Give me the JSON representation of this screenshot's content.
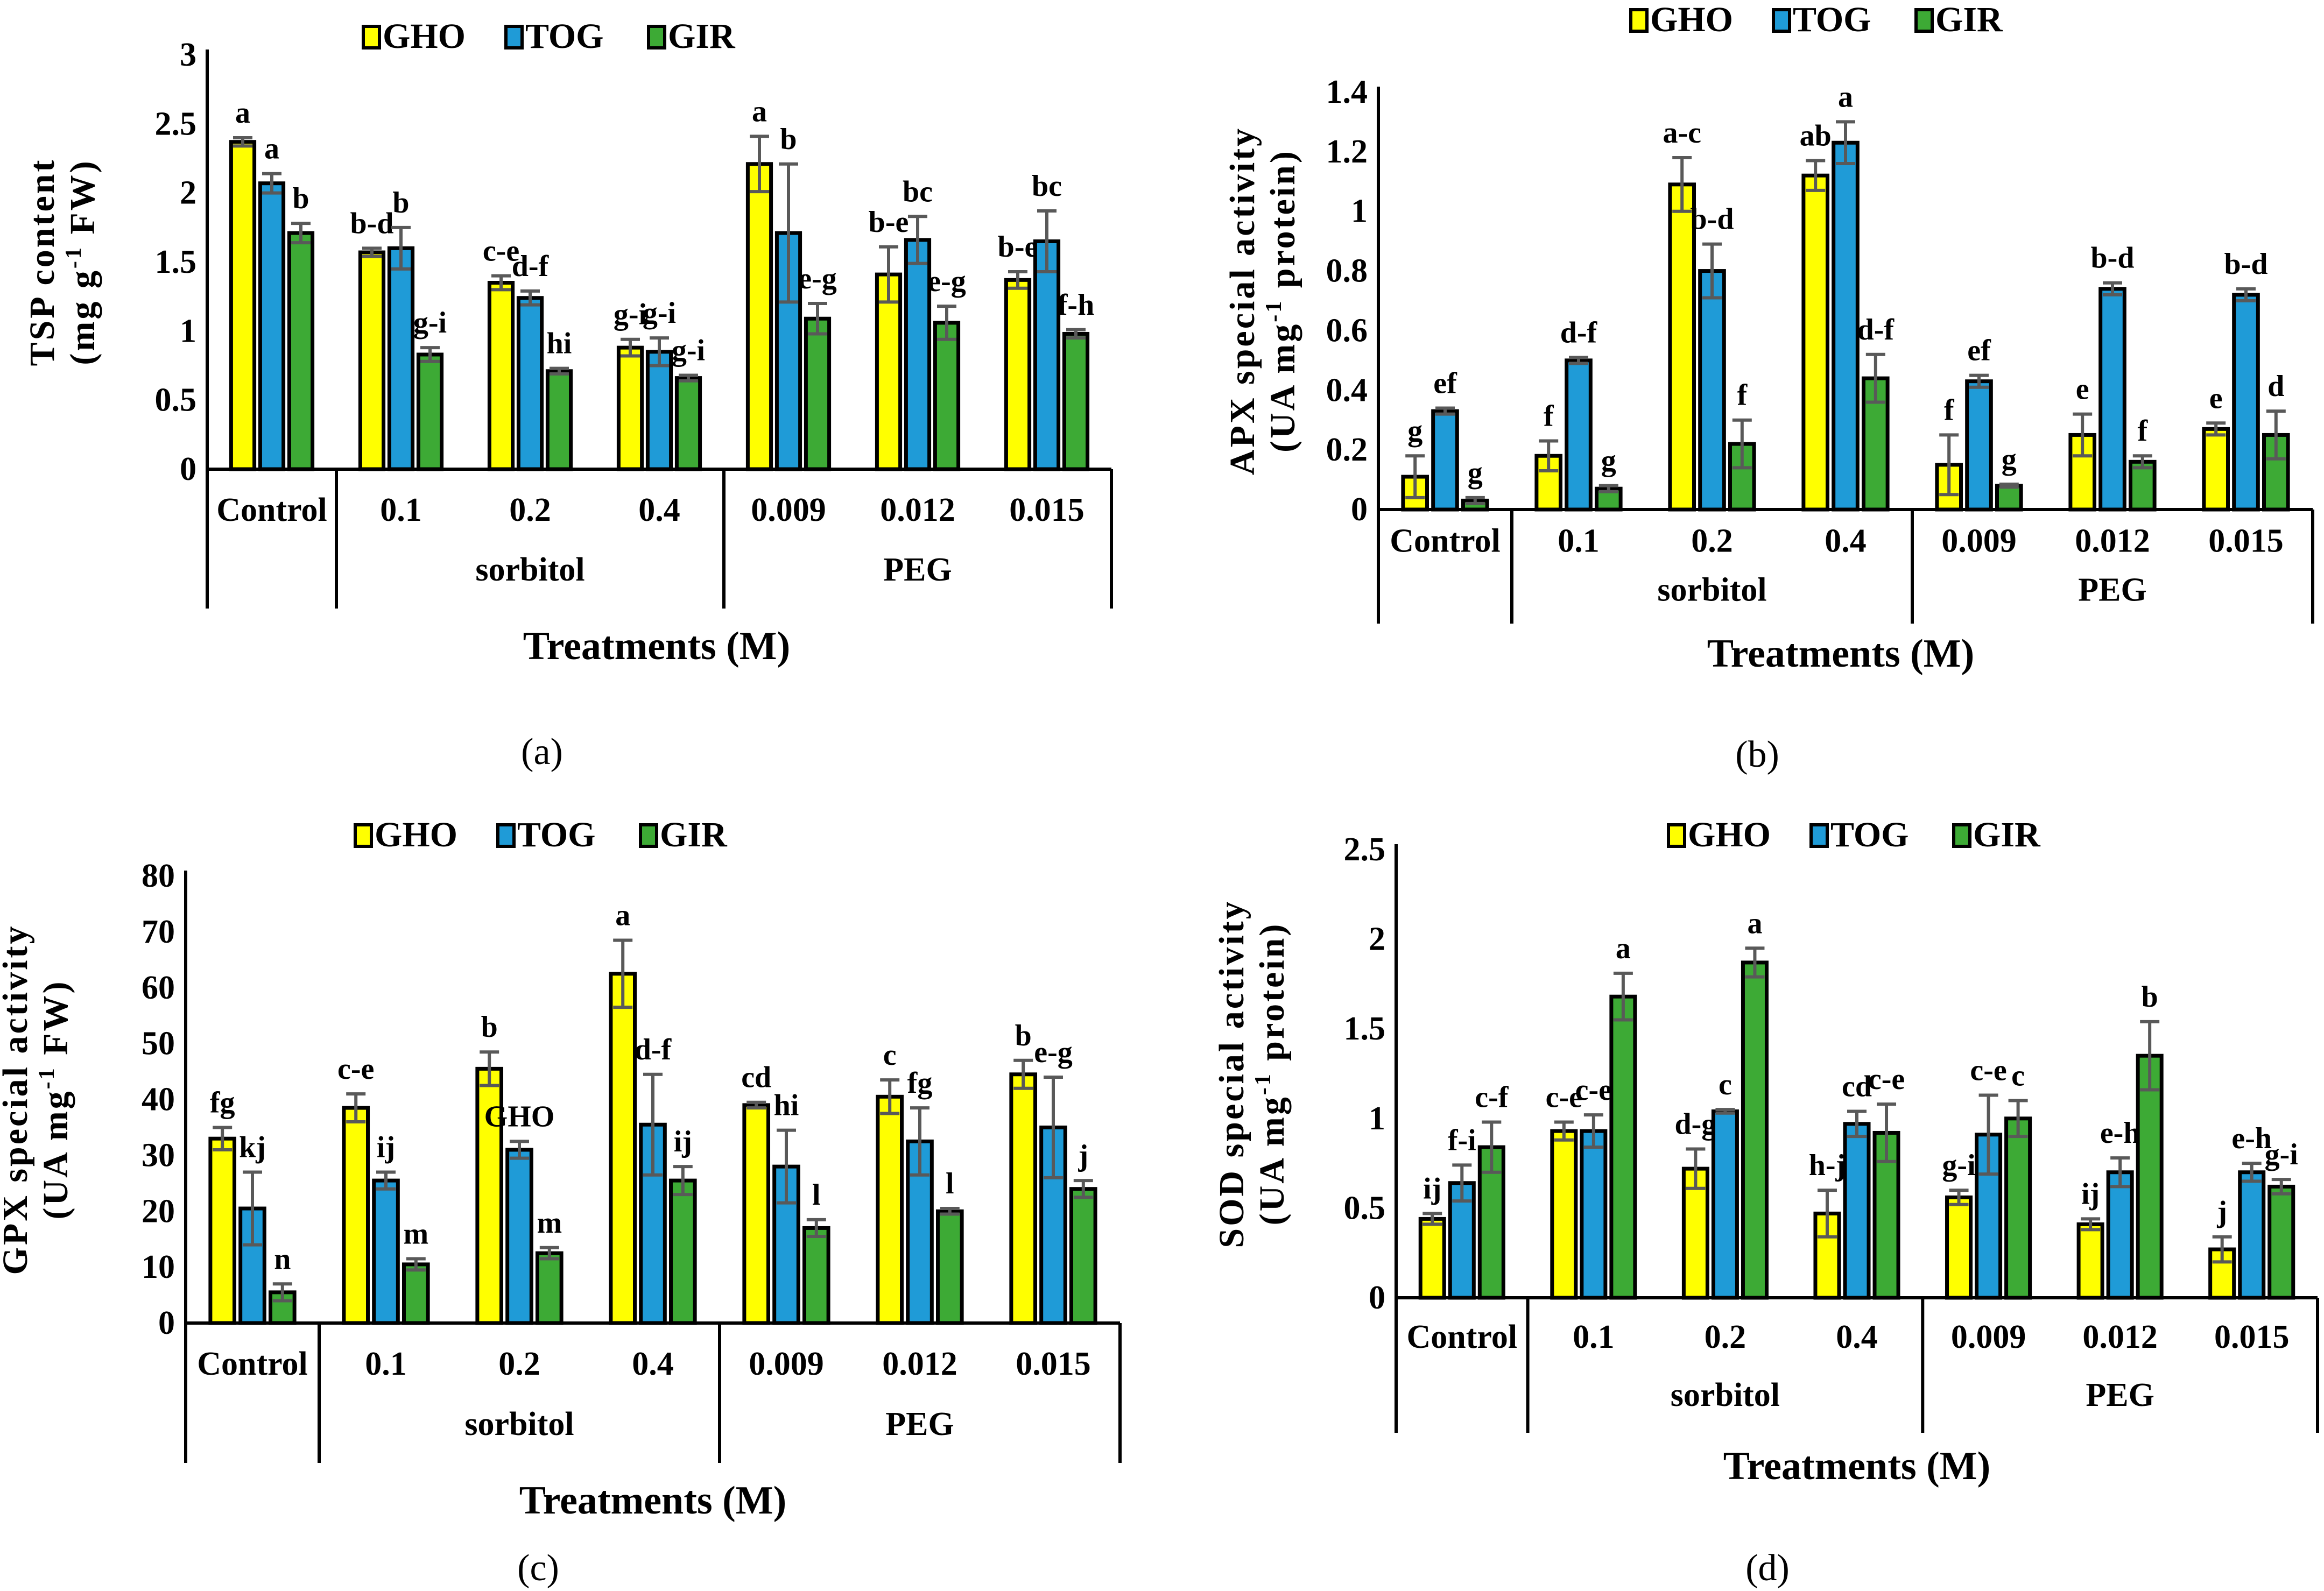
{
  "colors": {
    "GHO": "#FFFF00",
    "TOG": "#1F9BD7",
    "GIR": "#3DAA35",
    "error": "#595959",
    "axis": "#000000"
  },
  "chart_data": [
    {
      "type": "bar",
      "panel": "(a)",
      "legend": [
        "GHO",
        "TOG",
        "GIR"
      ],
      "legend_placement": "top-center",
      "ylabel": [
        "TSP content",
        "(mg g",
        "-1",
        " FW)"
      ],
      "xlabel": "Treatments (M)",
      "categories": [
        "Control",
        "0.1",
        "0.2",
        "0.4",
        "0.009",
        "0.012",
        "0.015"
      ],
      "groups": [
        "",
        "sorbitol",
        "PEG"
      ],
      "ylim": [
        0,
        3
      ],
      "yticks": [
        "0",
        "0.5",
        "1",
        "1.5",
        "2",
        "2.5",
        "3"
      ],
      "series": [
        {
          "name": "GHO",
          "values": [
            2.37,
            1.57,
            1.35,
            0.88,
            2.21,
            1.41,
            1.37
          ],
          "errors": [
            0.03,
            0.03,
            0.05,
            0.06,
            0.2,
            0.2,
            0.06
          ],
          "letters": [
            "a",
            "b-d",
            "c-e",
            "g-i",
            "a",
            "b-e",
            "b-e"
          ]
        },
        {
          "name": "TOG",
          "values": [
            2.07,
            1.6,
            1.24,
            0.85,
            1.71,
            1.66,
            1.65
          ],
          "errors": [
            0.07,
            0.15,
            0.05,
            0.1,
            0.5,
            0.17,
            0.22
          ],
          "letters": [
            "a",
            "b",
            "d-f",
            "g-i",
            "b",
            "bc",
            "bc"
          ]
        },
        {
          "name": "GIR",
          "values": [
            1.71,
            0.83,
            0.71,
            0.66,
            1.09,
            1.06,
            0.98
          ],
          "errors": [
            0.07,
            0.05,
            0.02,
            0.02,
            0.11,
            0.12,
            0.03
          ],
          "letters": [
            "b",
            "g-i",
            "hi",
            "g-i",
            "e-g",
            "e-g",
            "f-h"
          ]
        }
      ]
    },
    {
      "type": "bar",
      "panel": "(b)",
      "legend": [
        "GHO",
        "TOG",
        "GIR"
      ],
      "legend_placement": "top-center",
      "ylabel": [
        "APX special activity",
        "(UA mg",
        "-1",
        " protein)"
      ],
      "xlabel": "Treatments (M)",
      "categories": [
        "Control",
        "0.1",
        "0.2",
        "0.4",
        "0.009",
        "0.012",
        "0.015"
      ],
      "groups": [
        "",
        "sorbitol",
        "PEG"
      ],
      "ylim": [
        0,
        1.4
      ],
      "yticks": [
        "0",
        "0.2",
        "0.4",
        "0.6",
        "0.8",
        "1",
        "1.2",
        "1.4"
      ],
      "series": [
        {
          "name": "GHO",
          "values": [
            0.11,
            0.18,
            1.09,
            1.12,
            0.15,
            0.25,
            0.27
          ],
          "errors": [
            0.07,
            0.05,
            0.09,
            0.05,
            0.1,
            0.07,
            0.02
          ],
          "letters": [
            "g",
            "f",
            "a-c",
            "ab",
            "f",
            "e",
            "e"
          ]
        },
        {
          "name": "TOG",
          "values": [
            0.33,
            0.5,
            0.8,
            1.23,
            0.43,
            0.74,
            0.72
          ],
          "errors": [
            0.01,
            0.01,
            0.09,
            0.07,
            0.02,
            0.02,
            0.02
          ],
          "letters": [
            "ef",
            "d-f",
            "b-d",
            "a",
            "ef",
            "b-d",
            "b-d"
          ]
        },
        {
          "name": "GIR",
          "values": [
            0.03,
            0.07,
            0.22,
            0.44,
            0.08,
            0.16,
            0.25
          ],
          "errors": [
            0.01,
            0.01,
            0.08,
            0.08,
            0.005,
            0.02,
            0.08
          ],
          "letters": [
            "g",
            "g",
            "f",
            "d-f",
            "g",
            "f",
            "d"
          ]
        }
      ]
    },
    {
      "type": "bar",
      "panel": "(c)",
      "legend": [
        "GHO",
        "TOG",
        "GIR"
      ],
      "legend_placement": "top-center",
      "ylabel": [
        "GPX special activity",
        "(UA mg",
        "-1",
        " FW)"
      ],
      "xlabel": "Treatments (M)",
      "categories": [
        "Control",
        "0.1",
        "0.2",
        "0.4",
        "0.009",
        "0.012",
        "0.015"
      ],
      "groups": [
        "",
        "sorbitol",
        "PEG"
      ],
      "ylim": [
        0,
        80
      ],
      "yticks": [
        "0",
        "10",
        "20",
        "30",
        "40",
        "50",
        "60",
        "70",
        "80"
      ],
      "series": [
        {
          "name": "GHO",
          "values": [
            33,
            38.5,
            45.5,
            62.5,
            39,
            40.5,
            44.5
          ],
          "errors": [
            2,
            2.5,
            3,
            6,
            0.5,
            3,
            2.5
          ],
          "letters": [
            "fg",
            "c-e",
            "b",
            "a",
            "cd",
            "c",
            "b"
          ]
        },
        {
          "name": "TOG",
          "values": [
            20.5,
            25.5,
            31,
            35.5,
            28,
            32.5,
            35
          ],
          "errors": [
            6.5,
            1.5,
            1.5,
            9,
            6.5,
            6,
            9
          ],
          "letters": [
            "kj",
            "ij",
            "GHO",
            "d-f",
            "hi",
            "fg",
            "e-g"
          ]
        },
        {
          "name": "GIR",
          "values": [
            5.5,
            10.5,
            12.5,
            25.5,
            17,
            20,
            24
          ],
          "errors": [
            1.5,
            1,
            1,
            2.5,
            1.5,
            0.5,
            1.5
          ],
          "letters": [
            "n",
            "m",
            "m",
            "ij",
            "l",
            "l",
            "j"
          ]
        }
      ]
    },
    {
      "type": "bar",
      "panel": "(d)",
      "legend": [
        "GHO",
        "TOG",
        "GIR"
      ],
      "legend_placement": "top-center",
      "ylabel": [
        "SOD special activity",
        "(UA mg",
        "-1",
        " protein)"
      ],
      "xlabel": "Treatments (M)",
      "categories": [
        "Control",
        "0.1",
        "0.2",
        "0.4",
        "0.009",
        "0.012",
        "0.015"
      ],
      "groups": [
        "",
        "sorbitol",
        "PEG"
      ],
      "ylim": [
        0,
        2.5
      ],
      "yticks": [
        "0",
        "0.5",
        "1",
        "1.5",
        "2",
        "2.5"
      ],
      "series": [
        {
          "name": "GHO",
          "values": [
            0.44,
            0.93,
            0.72,
            0.47,
            0.56,
            0.41,
            0.27
          ],
          "errors": [
            0.03,
            0.05,
            0.11,
            0.13,
            0.04,
            0.03,
            0.07
          ],
          "letters": [
            "ij",
            "c-e",
            "d-g",
            "h-j",
            "g-i",
            "ij",
            "j"
          ]
        },
        {
          "name": "TOG",
          "values": [
            0.64,
            0.93,
            1.04,
            0.97,
            0.91,
            0.7,
            0.7
          ],
          "errors": [
            0.1,
            0.09,
            0.01,
            0.07,
            0.22,
            0.08,
            0.05
          ],
          "letters": [
            "f-i",
            "c-e",
            "c",
            "cd",
            "c-e",
            "e-h",
            "e-h"
          ]
        },
        {
          "name": "GIR",
          "values": [
            0.84,
            1.68,
            1.87,
            0.92,
            1.0,
            1.35,
            0.62
          ],
          "errors": [
            0.14,
            0.13,
            0.08,
            0.16,
            0.1,
            0.19,
            0.04
          ],
          "letters": [
            "c-f",
            "a",
            "a",
            "c-e",
            "c",
            "b",
            "g-i"
          ]
        }
      ]
    }
  ]
}
